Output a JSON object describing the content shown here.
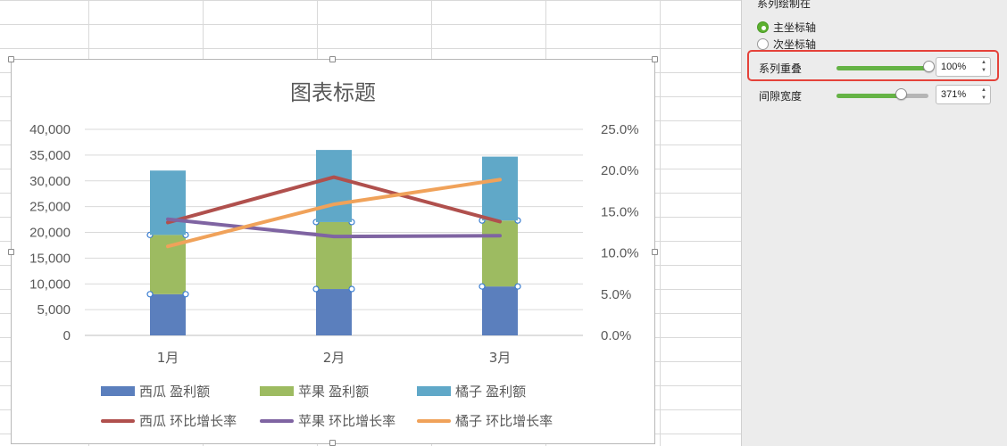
{
  "pane": {
    "heading": "系列绘制在",
    "axis_options": [
      {
        "label": "主坐标轴",
        "selected": true
      },
      {
        "label": "次坐标轴",
        "selected": false
      }
    ],
    "overlap": {
      "label": "系列重叠",
      "value": "100%",
      "fraction": 1.0
    },
    "gap": {
      "label": "间隙宽度",
      "value": "371%",
      "fraction": 0.7
    },
    "colors": {
      "slider_fill": "#65b345",
      "highlight": "#e5423a",
      "radio_on": "#5cb030"
    }
  },
  "chart_data": {
    "type": "bar",
    "title": "图表标题",
    "categories": [
      "1月",
      "2月",
      "3月"
    ],
    "y_left": {
      "min": 0,
      "max": 40000,
      "ticks": [
        "0",
        "5,000",
        "10,000",
        "15,000",
        "20,000",
        "25,000",
        "30,000",
        "35,000",
        "40,000"
      ]
    },
    "y_right": {
      "min": 0,
      "max": 0.25,
      "ticks": [
        "0.0%",
        "5.0%",
        "10.0%",
        "15.0%",
        "20.0%",
        "25.0%"
      ]
    },
    "stacked": true,
    "gridlines": true,
    "series": [
      {
        "name": "西瓜 盈利额",
        "kind": "bar",
        "color": "#5b7fbd",
        "values": [
          8000,
          9000,
          9500
        ]
      },
      {
        "name": "苹果 盈利额",
        "kind": "bar",
        "color": "#9dbb61",
        "values": [
          11500,
          13000,
          12800
        ]
      },
      {
        "name": "橘子 盈利额",
        "kind": "bar",
        "color": "#60a8c8",
        "values": [
          12500,
          14000,
          12400
        ]
      },
      {
        "name": "西瓜 环比增长率",
        "kind": "line",
        "color": "#b0504d",
        "values": [
          0.137,
          0.192,
          0.138
        ]
      },
      {
        "name": "苹果 环比增长率",
        "kind": "line",
        "color": "#7f64a2",
        "values": [
          0.141,
          0.12,
          0.121
        ]
      },
      {
        "name": "橘子 环比增长率",
        "kind": "line",
        "color": "#f0a25a",
        "values": [
          0.108,
          0.159,
          0.189
        ]
      }
    ],
    "legend_position": "bottom"
  }
}
